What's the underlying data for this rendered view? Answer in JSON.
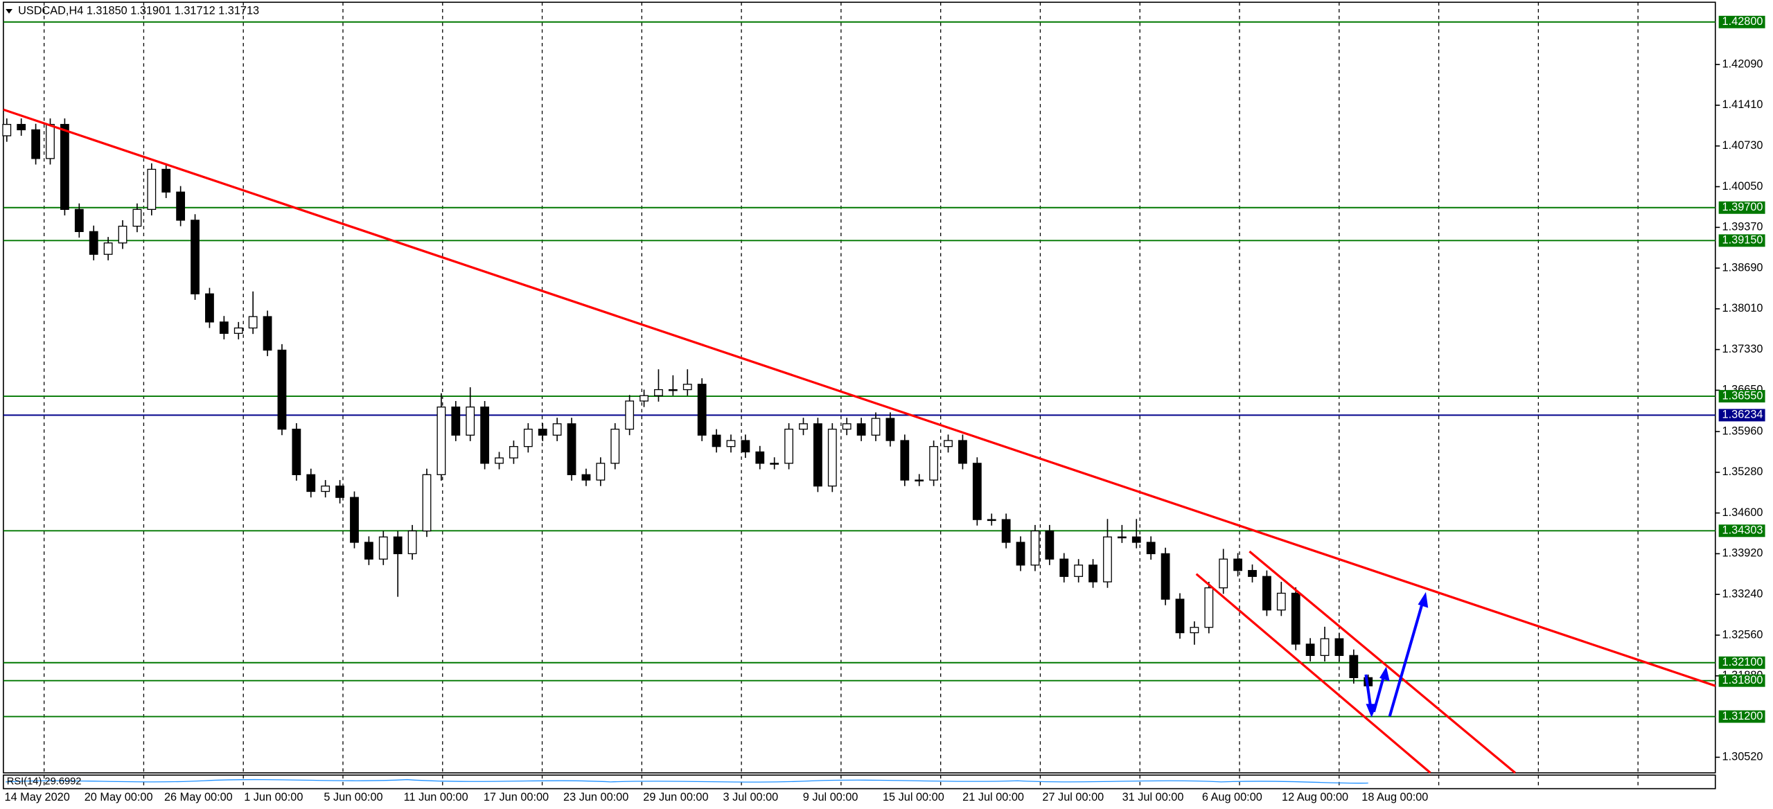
{
  "chart_data": {
    "type": "candlestick",
    "title": "USDCAD,H4  1.31850 1.31901 1.31712 1.31713",
    "ylim": [
      1.3026,
      1.4313
    ],
    "yticks": [
      {
        "value": 1.4209,
        "label": "1.42090"
      },
      {
        "value": 1.4141,
        "label": "1.41410"
      },
      {
        "value": 1.4073,
        "label": "1.40730"
      },
      {
        "value": 1.4005,
        "label": "1.40050"
      },
      {
        "value": 1.3937,
        "label": "1.39370"
      },
      {
        "value": 1.3869,
        "label": "1.38690"
      },
      {
        "value": 1.3801,
        "label": "1.38010"
      },
      {
        "value": 1.3733,
        "label": "1.37330"
      },
      {
        "value": 1.3665,
        "label": "1.36650"
      },
      {
        "value": 1.3596,
        "label": "1.35960"
      },
      {
        "value": 1.3528,
        "label": "1.35280"
      },
      {
        "value": 1.346,
        "label": "1.34600"
      },
      {
        "value": 1.3392,
        "label": "1.33920"
      },
      {
        "value": 1.3324,
        "label": "1.33240"
      },
      {
        "value": 1.3256,
        "label": "1.32560"
      },
      {
        "value": 1.3188,
        "label": "1.31880"
      },
      {
        "value": 1.3052,
        "label": "1.30520"
      }
    ],
    "x_labels": [
      "14 May 2020",
      "20 May 00:00",
      "26 May 00:00",
      "1 Jun 00:00",
      "5 Jun 00:00",
      "11 Jun 00:00",
      "17 Jun 00:00",
      "23 Jun 00:00",
      "29 Jun 00:00",
      "3 Jul 00:00",
      "9 Jul 00:00",
      "15 Jul 00:00",
      "21 Jul 00:00",
      "27 Jul 00:00",
      "31 Jul 00:00",
      "6 Aug 00:00",
      "12 Aug 00:00",
      "18 Aug 00:00"
    ],
    "levels": [
      {
        "value": 1.428,
        "label": "1.42800",
        "color": "#007800"
      },
      {
        "value": 1.397,
        "label": "1.39700",
        "color": "#007800"
      },
      {
        "value": 1.3915,
        "label": "1.39150",
        "color": "#007800"
      },
      {
        "value": 1.3655,
        "label": "1.36550",
        "color": "#007800"
      },
      {
        "value": 1.36234,
        "label": "1.36234",
        "color": "#00008b"
      },
      {
        "value": 1.34303,
        "label": "1.34303",
        "color": "#007800"
      },
      {
        "value": 1.321,
        "label": "1.32100",
        "color": "#007800"
      },
      {
        "value": 1.318,
        "label": "1.31800",
        "color": "#007800"
      },
      {
        "value": 1.312,
        "label": "1.31200",
        "color": "#007800"
      }
    ],
    "rsi_label": "RSI(14) 29.6992",
    "open": [
      1.409,
      1.4109,
      1.41,
      1.4052,
      1.4109,
      1.3967,
      1.393,
      1.3892,
      1.3911,
      1.3939,
      1.3967,
      1.4034,
      1.3996,
      1.3949,
      1.3826,
      1.3779,
      1.376,
      1.3769,
      1.3788,
      1.3732,
      1.36,
      1.3524,
      1.3496,
      1.3505,
      1.3486,
      1.3411,
      1.3383,
      1.342,
      1.3392,
      1.343,
      1.3524,
      1.3637,
      1.359,
      1.3637,
      1.3543,
      1.3552,
      1.3571,
      1.36,
      1.359,
      1.3609,
      1.3524,
      1.3515,
      1.3543,
      1.36,
      1.3647,
      1.3656,
      1.3666,
      1.3666,
      1.3675,
      1.359,
      1.3571,
      1.3581,
      1.3562,
      1.3543,
      1.3543,
      1.36,
      1.3609,
      1.3505,
      1.36,
      1.3609,
      1.359,
      1.3618,
      1.3581,
      1.3515,
      1.3515,
      1.3571,
      1.3581,
      1.3543,
      1.3449,
      1.3449,
      1.3411,
      1.3373,
      1.343,
      1.3383,
      1.3354,
      1.3373,
      1.3345,
      1.342,
      1.342,
      1.3411,
      1.3392,
      1.3316,
      1.326,
      1.3269,
      1.3335,
      1.3383,
      1.3364,
      1.3354,
      1.3298,
      1.3326,
      1.3241,
      1.3222,
      1.325,
      1.3222,
      1.3185
    ],
    "high": [
      1.4119,
      1.4119,
      1.411,
      1.4119,
      1.4119,
      1.3977,
      1.394,
      1.3921,
      1.3949,
      1.3977,
      1.4044,
      1.4044,
      1.4006,
      1.3959,
      1.3836,
      1.3789,
      1.3779,
      1.383,
      1.3798,
      1.3742,
      1.361,
      1.3534,
      1.3515,
      1.3515,
      1.3496,
      1.3421,
      1.343,
      1.343,
      1.344,
      1.3534,
      1.366,
      1.3647,
      1.367,
      1.3647,
      1.3562,
      1.3581,
      1.361,
      1.361,
      1.3619,
      1.3619,
      1.3534,
      1.3553,
      1.361,
      1.3657,
      1.3666,
      1.37,
      1.369,
      1.37,
      1.3685,
      1.36,
      1.3591,
      1.3591,
      1.3572,
      1.3553,
      1.361,
      1.3619,
      1.3619,
      1.361,
      1.3619,
      1.3619,
      1.3628,
      1.3628,
      1.3591,
      1.3525,
      1.3581,
      1.3591,
      1.3591,
      1.3553,
      1.3459,
      1.3459,
      1.3421,
      1.344,
      1.344,
      1.3393,
      1.3383,
      1.3383,
      1.345,
      1.344,
      1.345,
      1.3421,
      1.3402,
      1.3326,
      1.3279,
      1.3345,
      1.34,
      1.3393,
      1.3374,
      1.3364,
      1.3345,
      1.3336,
      1.3251,
      1.327,
      1.326,
      1.3232,
      1.31901
    ],
    "low": [
      1.408,
      1.409,
      1.4042,
      1.4042,
      1.3957,
      1.392,
      1.3882,
      1.3882,
      1.3901,
      1.3929,
      1.3957,
      1.3986,
      1.3939,
      1.3816,
      1.3769,
      1.375,
      1.375,
      1.3759,
      1.3722,
      1.359,
      1.3514,
      1.3486,
      1.3486,
      1.3476,
      1.3401,
      1.3373,
      1.3373,
      1.332,
      1.3382,
      1.342,
      1.3514,
      1.358,
      1.358,
      1.3533,
      1.3533,
      1.3542,
      1.3561,
      1.358,
      1.358,
      1.3514,
      1.3505,
      1.3505,
      1.3533,
      1.359,
      1.3637,
      1.3646,
      1.3656,
      1.3656,
      1.358,
      1.3561,
      1.3561,
      1.3552,
      1.3533,
      1.3533,
      1.3533,
      1.359,
      1.3495,
      1.3495,
      1.359,
      1.358,
      1.358,
      1.3571,
      1.3505,
      1.3505,
      1.3505,
      1.3561,
      1.3533,
      1.3439,
      1.3439,
      1.3401,
      1.3363,
      1.3363,
      1.3373,
      1.3344,
      1.3344,
      1.3335,
      1.3335,
      1.341,
      1.3401,
      1.3382,
      1.3306,
      1.325,
      1.324,
      1.3259,
      1.3325,
      1.3354,
      1.3344,
      1.3288,
      1.3288,
      1.3231,
      1.3212,
      1.3212,
      1.3212,
      1.3175,
      1.31712
    ],
    "close": [
      1.4109,
      1.41,
      1.4052,
      1.4109,
      1.3967,
      1.393,
      1.3892,
      1.3911,
      1.3939,
      1.3967,
      1.4034,
      1.3996,
      1.3949,
      1.3826,
      1.3779,
      1.376,
      1.3769,
      1.3788,
      1.3732,
      1.36,
      1.3524,
      1.3496,
      1.3505,
      1.3486,
      1.3411,
      1.3383,
      1.342,
      1.3392,
      1.343,
      1.3524,
      1.3637,
      1.359,
      1.3637,
      1.3543,
      1.3552,
      1.3571,
      1.36,
      1.359,
      1.3609,
      1.3524,
      1.3515,
      1.3543,
      1.36,
      1.3647,
      1.3656,
      1.3666,
      1.3666,
      1.3675,
      1.359,
      1.3571,
      1.3581,
      1.3562,
      1.3543,
      1.3543,
      1.36,
      1.3609,
      1.3505,
      1.36,
      1.3609,
      1.359,
      1.3618,
      1.3581,
      1.3515,
      1.3515,
      1.3571,
      1.3581,
      1.3543,
      1.3449,
      1.3449,
      1.3411,
      1.3373,
      1.343,
      1.3383,
      1.3354,
      1.3373,
      1.3345,
      1.342,
      1.342,
      1.3411,
      1.3392,
      1.3316,
      1.326,
      1.3269,
      1.3335,
      1.3383,
      1.3364,
      1.3354,
      1.3298,
      1.3326,
      1.3241,
      1.3222,
      1.325,
      1.3222,
      1.3185,
      1.31713
    ],
    "up_color": "#ffffff",
    "down_color": "#000000"
  }
}
